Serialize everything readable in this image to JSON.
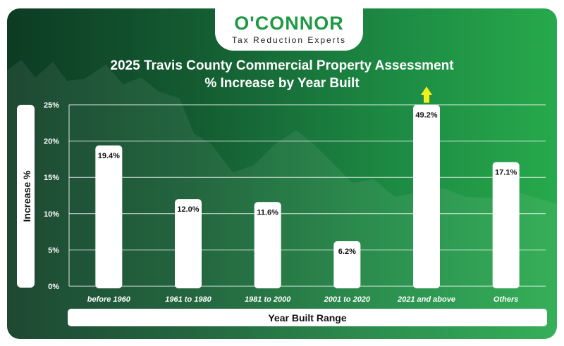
{
  "logo": {
    "name": "O'CONNOR",
    "tagline": "Tax Reduction Experts"
  },
  "chart_data": {
    "type": "bar",
    "title": "2025 Travis County Commercial Property Assessment",
    "subtitle": "% Increase by Year Built",
    "xlabel": "Year Built Range",
    "ylabel": "Increase %",
    "categories": [
      "before 1960",
      "1961 to 1980",
      "1981 to 2000",
      "2001 to 2020",
      "2021 and above",
      "Others"
    ],
    "values": [
      19.4,
      12.0,
      11.6,
      6.2,
      49.2,
      17.1
    ],
    "data_labels": [
      "19.4%",
      "12.0%",
      "11.6%",
      "6.2%",
      "49.2%",
      "17.1%"
    ],
    "ylim": [
      0,
      25
    ],
    "yticks": [
      0,
      5,
      10,
      15,
      20,
      25
    ],
    "ytick_labels": [
      "0%",
      "5%",
      "10%",
      "15%",
      "20%",
      "25%"
    ],
    "grid": true,
    "clipped_bar_indicator": "up-arrow",
    "colors": {
      "bar": "#ffffff",
      "arrow": "#f2ef1b",
      "background_start": "#0d3b23",
      "background_end": "#27a94c"
    }
  }
}
